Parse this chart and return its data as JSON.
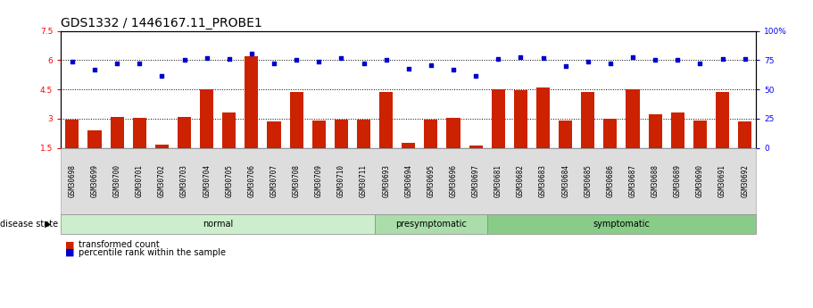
{
  "title": "GDS1332 / 1446167.11_PROBE1",
  "samples": [
    "GSM30698",
    "GSM30699",
    "GSM30700",
    "GSM30701",
    "GSM30702",
    "GSM30703",
    "GSM30704",
    "GSM30705",
    "GSM30706",
    "GSM30707",
    "GSM30708",
    "GSM30709",
    "GSM30710",
    "GSM30711",
    "GSM30693",
    "GSM30694",
    "GSM30695",
    "GSM30696",
    "GSM30697",
    "GSM30681",
    "GSM30682",
    "GSM30683",
    "GSM30684",
    "GSM30685",
    "GSM30686",
    "GSM30687",
    "GSM30688",
    "GSM30689",
    "GSM30690",
    "GSM30691",
    "GSM30692"
  ],
  "bar_values": [
    2.95,
    2.4,
    3.1,
    3.05,
    1.65,
    3.1,
    4.5,
    3.3,
    6.2,
    2.85,
    4.35,
    2.9,
    2.95,
    2.95,
    4.35,
    1.75,
    2.95,
    3.05,
    1.6,
    4.5,
    4.45,
    4.6,
    2.9,
    4.35,
    3.0,
    4.5,
    3.2,
    3.3,
    2.9,
    4.35,
    2.85
  ],
  "dot_values": [
    5.9,
    5.5,
    5.85,
    5.85,
    5.2,
    6.0,
    6.1,
    6.05,
    6.35,
    5.85,
    6.0,
    5.9,
    6.1,
    5.85,
    6.0,
    5.55,
    5.75,
    5.5,
    5.2,
    6.05,
    6.15,
    6.1,
    5.7,
    5.9,
    5.85,
    6.15,
    6.0,
    6.0,
    5.85,
    6.05,
    6.05
  ],
  "groups": [
    {
      "label": "normal",
      "start": 0,
      "end": 14,
      "color": "#cceecc"
    },
    {
      "label": "presymptomatic",
      "start": 14,
      "end": 19,
      "color": "#aaddaa"
    },
    {
      "label": "symptomatic",
      "start": 19,
      "end": 31,
      "color": "#88cc88"
    }
  ],
  "ylim_left": [
    1.5,
    7.5
  ],
  "ylim_right": [
    0,
    100
  ],
  "yticks_left": [
    1.5,
    3.0,
    4.5,
    6.0,
    7.5
  ],
  "yticks_right": [
    0,
    25,
    50,
    75,
    100
  ],
  "bar_color": "#cc2200",
  "dot_color": "#0000cc",
  "background_color": "#ffffff",
  "title_fontsize": 10,
  "tick_fontsize": 6.5
}
